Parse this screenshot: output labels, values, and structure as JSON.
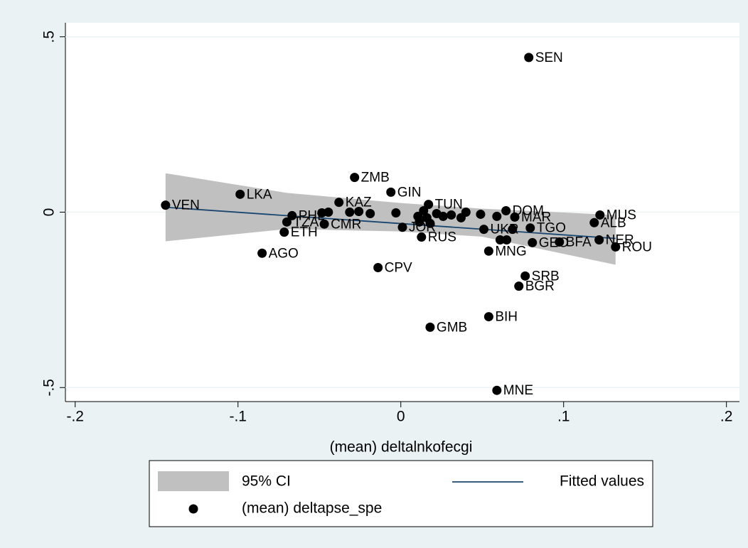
{
  "chart_data": {
    "type": "scatter",
    "x_label": "(mean) deltalnkofecgi",
    "xlim": [
      -0.206,
      0.208
    ],
    "ylim": [
      -0.54,
      0.54
    ],
    "xticks": [
      {
        "value": -0.2,
        "label": "-.2"
      },
      {
        "value": -0.1,
        "label": "-.1"
      },
      0,
      {
        "value": 0.1,
        "label": ".1"
      },
      {
        "value": 0.2,
        "label": ".2"
      }
    ],
    "yticks": [
      {
        "value": -0.5,
        "label": "-.5"
      },
      0,
      {
        "value": 0.5,
        "label": ".5"
      }
    ],
    "grid": true,
    "x": [
      -0.1445,
      -0.0987,
      -0.0284,
      -0.0061,
      -0.038,
      0.0786,
      -0.0852,
      -0.0716,
      -0.07,
      -0.0668,
      -0.047,
      -0.014,
      0.018,
      0.054,
      0.059,
      0.0764,
      0.0725,
      0.054,
      0.0127,
      0.001,
      0.017,
      0.0646,
      0.1223,
      0.1188,
      0.1218,
      0.1319,
      0.0974,
      0.0808,
      0.0795,
      0.07,
      0.051,
      -0.0485,
      -0.0445,
      -0.0314,
      -0.0258,
      -0.0188,
      -0.003,
      0.0105,
      0.0114,
      0.014,
      0.016,
      0.018,
      0.022,
      0.026,
      0.031,
      0.037,
      0.04,
      0.049,
      0.059,
      0.061,
      0.065,
      0.0686
    ],
    "point_labels": [
      "VEN",
      "LKA",
      "ZMB",
      "GIN",
      "KAZ",
      "SEN",
      "AGO",
      "ETH",
      "TZA",
      "PHL",
      "CMR",
      "CPV",
      "GMB",
      "BIH",
      "MNE",
      "SRB",
      "BGR",
      "MNG",
      "RUS",
      "JOR",
      "TUN",
      "DOM",
      "MUS",
      "ALB",
      "NER",
      "ROU",
      "BFA",
      "GEO",
      "TGO",
      "MAR",
      "UKR",
      null,
      null,
      null,
      null,
      null,
      null,
      null,
      null,
      null,
      null,
      null,
      null,
      null,
      null,
      null,
      null,
      null,
      null,
      null,
      null,
      null
    ],
    "series": [
      {
        "name": "(mean) deltapse_spe",
        "color": "#000000",
        "values": [
          0.02,
          0.051,
          0.099,
          0.057,
          0.028,
          0.441,
          -0.117,
          -0.057,
          -0.028,
          -0.01,
          -0.034,
          -0.158,
          -0.328,
          -0.298,
          -0.508,
          -0.182,
          -0.211,
          -0.111,
          -0.071,
          -0.043,
          0.022,
          0.004,
          -0.008,
          -0.03,
          -0.079,
          -0.099,
          -0.085,
          -0.087,
          -0.045,
          -0.014,
          -0.049,
          -0.002,
          0.0,
          0.0,
          0.002,
          -0.004,
          -0.002,
          -0.012,
          -0.028,
          0.004,
          -0.016,
          -0.032,
          -0.004,
          -0.012,
          -0.008,
          -0.016,
          0.0,
          -0.006,
          -0.012,
          -0.079,
          -0.079,
          -0.049
        ]
      }
    ],
    "fit": {
      "name": "Fitted values",
      "color": "#1a476f",
      "x": [
        -0.1445,
        0.1319
      ],
      "values": [
        0.014,
        -0.075
      ]
    },
    "ci": {
      "name": "95% CI",
      "color": "#c0c0c0",
      "x": [
        -0.1445,
        -0.07,
        0,
        0.05,
        0.1319
      ],
      "lower": [
        -0.083,
        -0.048,
        -0.055,
        -0.07,
        -0.15
      ],
      "upper": [
        0.111,
        0.055,
        0.026,
        0.01,
        -0.008
      ]
    }
  }
}
